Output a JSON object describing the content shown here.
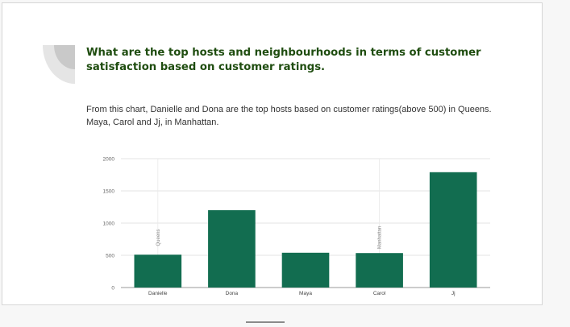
{
  "slide": {
    "heading": "What are the top hosts and neighbourhoods in terms of customer satisfaction based on customer ratings.",
    "body": "From this chart, Danielle and Dona are the top hosts based on customer ratings(above 500) in Queens. Maya, Carol and Jj, in Manhattan."
  },
  "colors": {
    "bar": "#126d50",
    "heading": "#1f4d10",
    "grid": "#e3e3e3",
    "deco_outer": "#e5e5e5",
    "deco_inner": "#c9c9c9"
  },
  "chart_data": {
    "type": "bar",
    "categories": [
      "Danielle",
      "Dona",
      "Maya",
      "Carol",
      "Jj"
    ],
    "values": [
      510,
      1200,
      540,
      535,
      1790
    ],
    "ylim": [
      0,
      2000
    ],
    "yticks": [
      0,
      500,
      1000,
      1500,
      2000
    ],
    "grid": true,
    "group_labels": [
      {
        "text": "Queens",
        "at": "Danielle"
      },
      {
        "text": "Manhattan",
        "at": "Carol"
      }
    ]
  }
}
